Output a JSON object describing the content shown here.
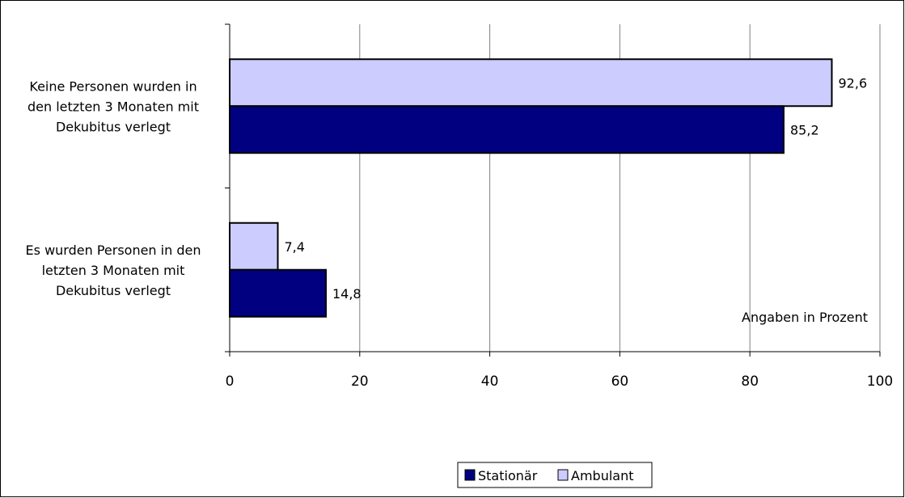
{
  "chart_data": {
    "type": "bar",
    "orientation": "horizontal",
    "categories": [
      "Keine Personen wurden in den letzten 3 Monaten mit Dekubitus verlegt",
      "Es wurden Personen in den letzten 3 Monaten mit Dekubitus verlegt"
    ],
    "category_lines": [
      [
        "Keine Personen wurden in",
        "den letzten 3 Monaten mit",
        "Dekubitus verlegt"
      ],
      [
        "Es wurden Personen in den",
        "letzten 3 Monaten mit",
        "Dekubitus verlegt"
      ]
    ],
    "series": [
      {
        "name": "Ambulant",
        "color": "#ccccff",
        "values": [
          92.6,
          7.4
        ],
        "labels": [
          "92,6",
          "7,4"
        ]
      },
      {
        "name": "Stationär",
        "color": "#000080",
        "values": [
          85.2,
          14.8
        ],
        "labels": [
          "85,2",
          "14,8"
        ]
      }
    ],
    "legend_order": [
      "Stationär",
      "Ambulant"
    ],
    "xlim": [
      0,
      100
    ],
    "xticks": [
      0,
      20,
      40,
      60,
      80,
      100
    ],
    "xtick_labels": [
      "0",
      "20",
      "40",
      "60",
      "80",
      "100"
    ],
    "annotation": "Angaben in Prozent",
    "grid": "vertical",
    "legend_position": "bottom-center"
  }
}
